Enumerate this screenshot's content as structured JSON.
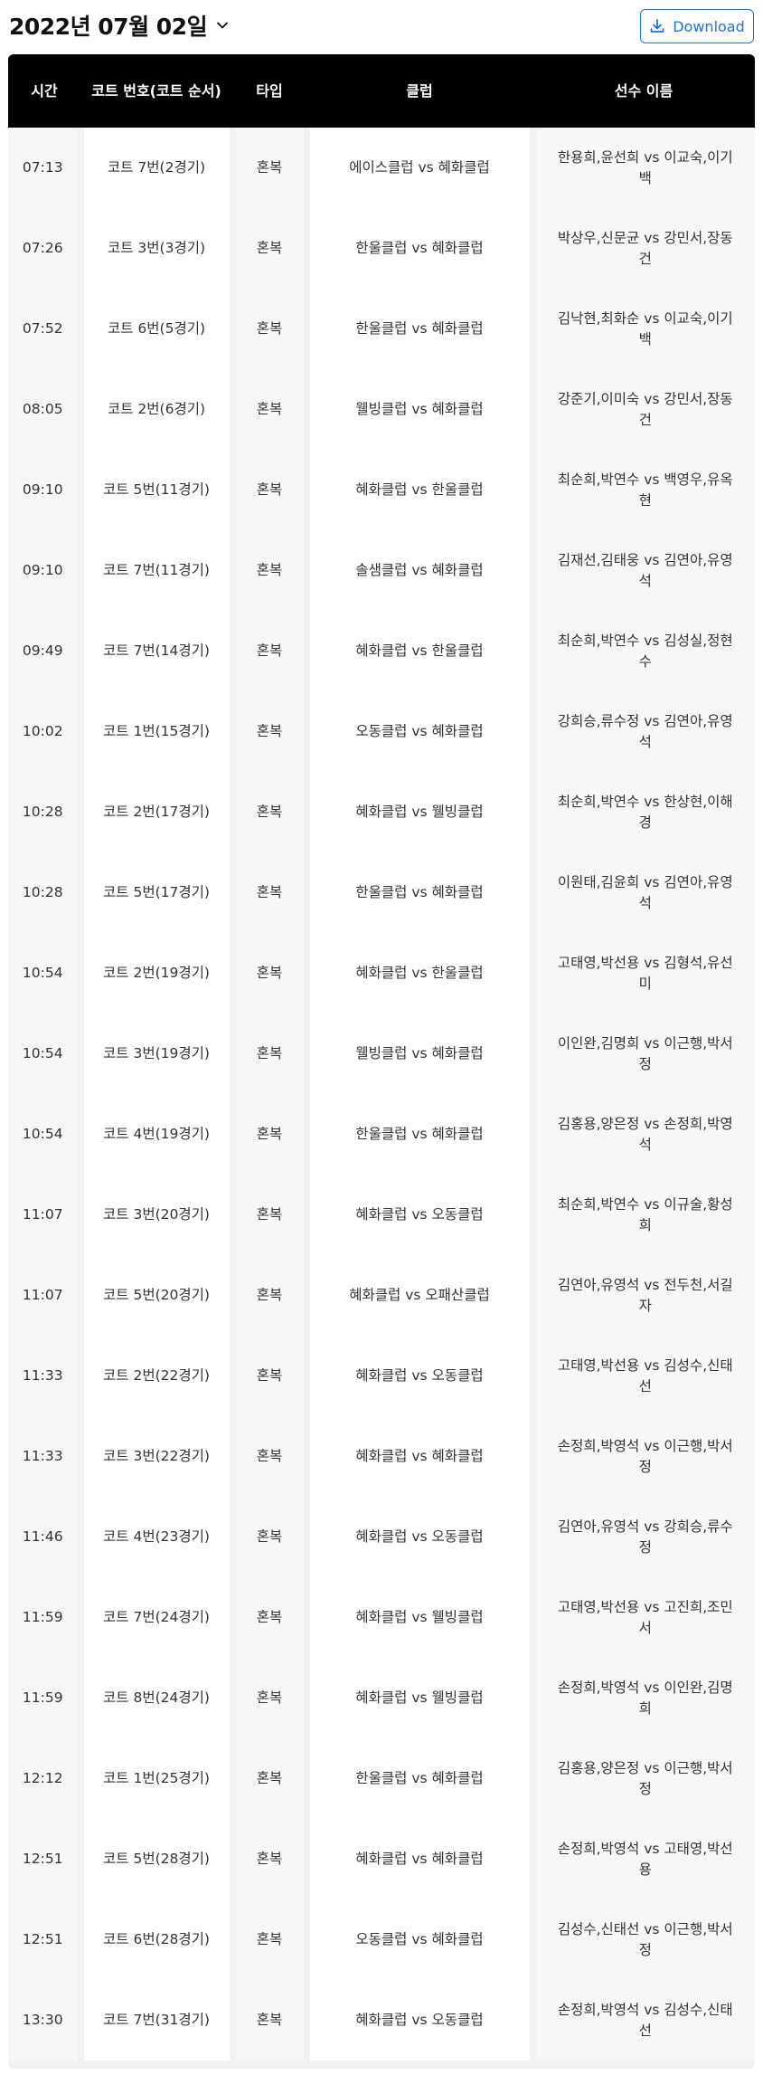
{
  "header": {
    "date": "2022년 07월 02일",
    "download_label": "Download"
  },
  "table": {
    "columns": [
      "시간",
      "코트 번호(코트 순서)",
      "타입",
      "클럽",
      "선수 이름"
    ],
    "rows": [
      {
        "time": "07:13",
        "court": "코트 7번(2경기)",
        "type": "혼복",
        "club": "에이스클럽 vs 혜화클럽",
        "players": "한용희,윤선희 vs 이교숙,이기백"
      },
      {
        "time": "07:26",
        "court": "코트 3번(3경기)",
        "type": "혼복",
        "club": "한울클럽 vs 혜화클럽",
        "players": "박상우,신문균 vs 강민서,장동건"
      },
      {
        "time": "07:52",
        "court": "코트 6번(5경기)",
        "type": "혼복",
        "club": "한울클럽 vs 혜화클럽",
        "players": "김낙현,최화순 vs 이교숙,이기백"
      },
      {
        "time": "08:05",
        "court": "코트 2번(6경기)",
        "type": "혼복",
        "club": "웰빙클럽 vs 혜화클럽",
        "players": "강준기,이미숙 vs 강민서,장동건"
      },
      {
        "time": "09:10",
        "court": "코트 5번(11경기)",
        "type": "혼복",
        "club": "혜화클럽 vs 한울클럽",
        "players": "최순희,박연수 vs 백영우,유옥현"
      },
      {
        "time": "09:10",
        "court": "코트 7번(11경기)",
        "type": "혼복",
        "club": "솔샘클럽 vs 혜화클럽",
        "players": "김재선,김태웅 vs 김연아,유영석"
      },
      {
        "time": "09:49",
        "court": "코트 7번(14경기)",
        "type": "혼복",
        "club": "혜화클럽 vs 한울클럽",
        "players": "최순희,박연수 vs 김성실,정현수"
      },
      {
        "time": "10:02",
        "court": "코트 1번(15경기)",
        "type": "혼복",
        "club": "오동클럽 vs 혜화클럽",
        "players": "강희승,류수정 vs 김연아,유영석"
      },
      {
        "time": "10:28",
        "court": "코트 2번(17경기)",
        "type": "혼복",
        "club": "혜화클럽 vs 웰빙클럽",
        "players": "최순희,박연수 vs 한상현,이해경"
      },
      {
        "time": "10:28",
        "court": "코트 5번(17경기)",
        "type": "혼복",
        "club": "한울클럽 vs 혜화클럽",
        "players": "이원태,김윤희 vs 김연아,유영석"
      },
      {
        "time": "10:54",
        "court": "코트 2번(19경기)",
        "type": "혼복",
        "club": "혜화클럽 vs 한울클럽",
        "players": "고태영,박선용 vs 김형석,유선미"
      },
      {
        "time": "10:54",
        "court": "코트 3번(19경기)",
        "type": "혼복",
        "club": "웰빙클럽 vs 혜화클럽",
        "players": "이인완,김명희 vs 이근행,박서정"
      },
      {
        "time": "10:54",
        "court": "코트 4번(19경기)",
        "type": "혼복",
        "club": "한울클럽 vs 혜화클럽",
        "players": "김홍용,양은정 vs 손정희,박영석"
      },
      {
        "time": "11:07",
        "court": "코트 3번(20경기)",
        "type": "혼복",
        "club": "혜화클럽 vs 오동클럽",
        "players": "최순희,박연수 vs 이규술,황성희"
      },
      {
        "time": "11:07",
        "court": "코트 5번(20경기)",
        "type": "혼복",
        "club": "혜화클럽 vs 오패산클럽",
        "players": "김연아,유영석 vs 전두천,서길자"
      },
      {
        "time": "11:33",
        "court": "코트 2번(22경기)",
        "type": "혼복",
        "club": "혜화클럽 vs 오동클럽",
        "players": "고태영,박선용 vs 김성수,신태선"
      },
      {
        "time": "11:33",
        "court": "코트 3번(22경기)",
        "type": "혼복",
        "club": "혜화클럽 vs 혜화클럽",
        "players": "손정희,박영석 vs 이근행,박서정"
      },
      {
        "time": "11:46",
        "court": "코트 4번(23경기)",
        "type": "혼복",
        "club": "혜화클럽 vs 오동클럽",
        "players": "김연아,유영석 vs 강희승,류수정"
      },
      {
        "time": "11:59",
        "court": "코트 7번(24경기)",
        "type": "혼복",
        "club": "혜화클럽 vs 웰빙클럽",
        "players": "고태영,박선용 vs 고진희,조민서"
      },
      {
        "time": "11:59",
        "court": "코트 8번(24경기)",
        "type": "혼복",
        "club": "혜화클럽 vs 웰빙클럽",
        "players": "손정희,박영석 vs 이인완,김명희"
      },
      {
        "time": "12:12",
        "court": "코트 1번(25경기)",
        "type": "혼복",
        "club": "한울클럽 vs 혜화클럽",
        "players": "김홍용,양은정 vs 이근행,박서정"
      },
      {
        "time": "12:51",
        "court": "코트 5번(28경기)",
        "type": "혼복",
        "club": "혜화클럽 vs 혜화클럽",
        "players": "손정희,박영석 vs 고태영,박선용"
      },
      {
        "time": "12:51",
        "court": "코트 6번(28경기)",
        "type": "혼복",
        "club": "오동클럽 vs 혜화클럽",
        "players": "김성수,신태선 vs 이근행,박서정"
      },
      {
        "time": "13:30",
        "court": "코트 7번(31경기)",
        "type": "혼복",
        "club": "혜화클럽 vs 오동클럽",
        "players": "손정희,박영석 vs 김성수,신태선"
      }
    ]
  },
  "icons": {
    "date_dropdown": "chevron-down-icon",
    "download": "download-icon"
  },
  "colors": {
    "accent": "#1a73e8",
    "header_bg": "#000000",
    "header_text": "#ffffff"
  }
}
